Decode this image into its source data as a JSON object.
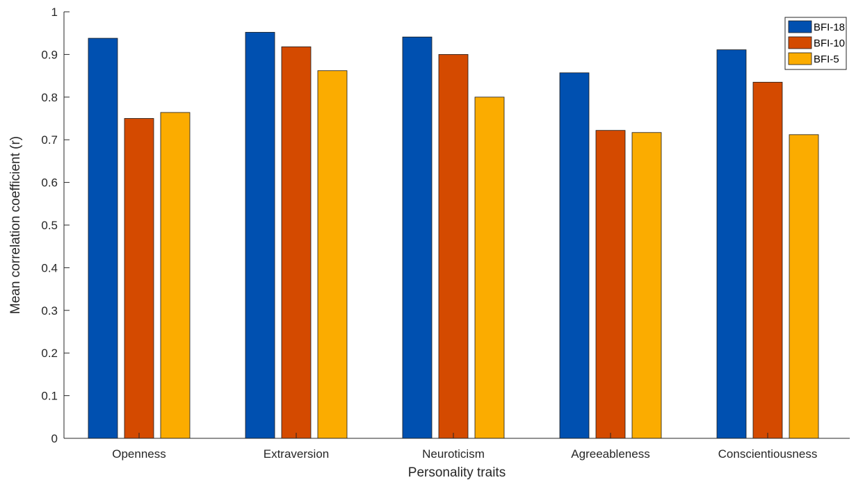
{
  "chart_data": {
    "type": "bar",
    "title": "",
    "xlabel": "Personality traits",
    "ylabel": "Mean correlation coefficient (r)",
    "ylim": [
      0,
      1
    ],
    "yticks": [
      0,
      0.1,
      0.2,
      0.3,
      0.4,
      0.5,
      0.6,
      0.7,
      0.8,
      0.9,
      1
    ],
    "ytick_labels": [
      "0",
      "0.1",
      "0.2",
      "0.3",
      "0.4",
      "0.5",
      "0.6",
      "0.7",
      "0.8",
      "0.9",
      "1"
    ],
    "categories": [
      "Openness",
      "Extraversion",
      "Neuroticism",
      "Agreeableness",
      "Conscientiousness"
    ],
    "series": [
      {
        "name": "BFI-18",
        "color": "#0050b0",
        "values": [
          0.938,
          0.952,
          0.941,
          0.857,
          0.911
        ]
      },
      {
        "name": "BFI-10",
        "color": "#d44a00",
        "values": [
          0.75,
          0.918,
          0.9,
          0.722,
          0.835
        ]
      },
      {
        "name": "BFI-5",
        "color": "#fbac00",
        "values": [
          0.764,
          0.862,
          0.8,
          0.717,
          0.712
        ]
      }
    ],
    "legend": {
      "position": "top-right"
    },
    "grid": false
  }
}
